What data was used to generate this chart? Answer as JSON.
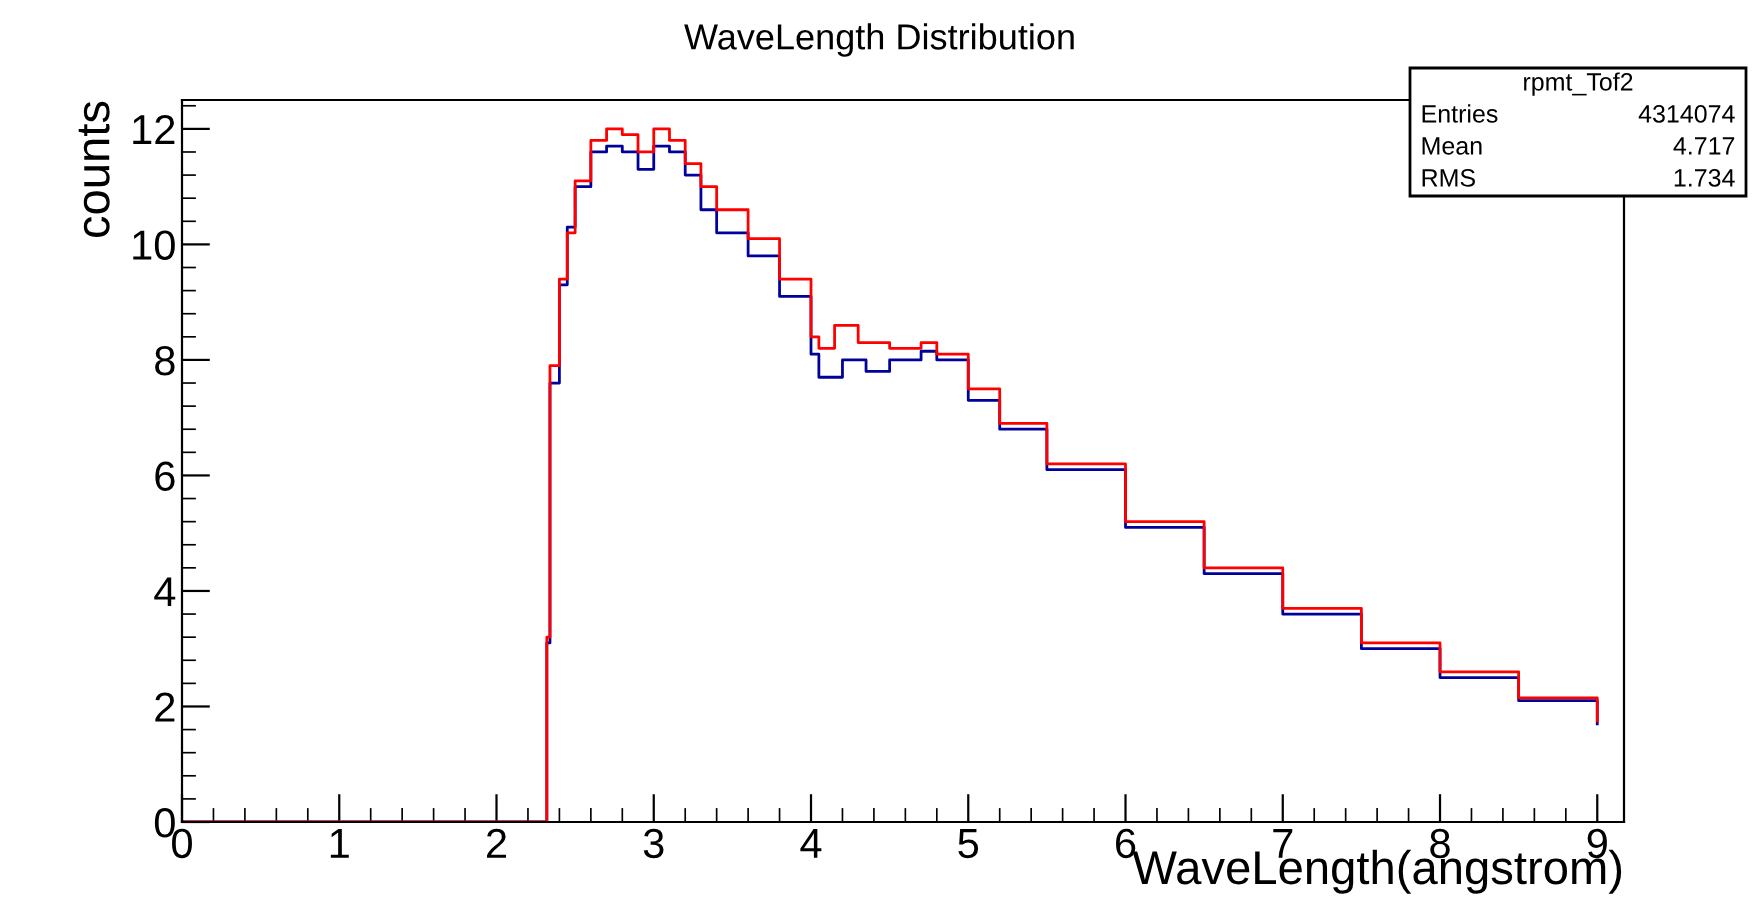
{
  "chart_data": {
    "type": "step",
    "title": "WaveLength Distribution",
    "xlabel": "WaveLength(angstrom)",
    "ylabel": "counts",
    "annotations": [
      "rpmt_Tof2",
      "Entries",
      "4314074",
      "Mean",
      "4.717",
      "RMS",
      "1.734"
    ],
    "xlim": [
      0,
      9.17
    ],
    "xticks": [
      0,
      1,
      2,
      3,
      4,
      5,
      6,
      7,
      8,
      9
    ],
    "ylim": [
      0,
      12.5
    ],
    "yticks": [
      0,
      2,
      4,
      6,
      8,
      10,
      12
    ],
    "grid": false,
    "legend": false,
    "series": [
      {
        "color": "#00009a",
        "x": [
          0,
          2.32,
          2.34,
          2.4,
          2.45,
          2.5,
          2.6,
          2.7,
          2.8,
          2.9,
          3.0,
          3.1,
          3.2,
          3.3,
          3.4,
          3.6,
          3.8,
          4.0,
          4.05,
          4.2,
          4.35,
          4.5,
          4.7,
          4.8,
          5.0,
          5.2,
          5.5,
          6.0,
          6.5,
          7.0,
          7.5,
          8.0,
          8.5,
          9.0
        ],
        "values": [
          0,
          3.1,
          7.6,
          9.3,
          10.3,
          11.0,
          11.6,
          11.7,
          11.6,
          11.3,
          11.7,
          11.6,
          11.2,
          10.6,
          10.2,
          9.8,
          9.1,
          8.1,
          7.7,
          8.0,
          7.8,
          8.0,
          8.15,
          8.0,
          7.3,
          6.8,
          6.1,
          5.1,
          4.3,
          3.6,
          3.0,
          2.5,
          2.1,
          1.7
        ]
      },
      {
        "color": "#ff0000",
        "x": [
          0,
          2.32,
          2.34,
          2.4,
          2.45,
          2.5,
          2.6,
          2.7,
          2.8,
          2.9,
          3.0,
          3.1,
          3.2,
          3.3,
          3.4,
          3.6,
          3.8,
          4.0,
          4.05,
          4.15,
          4.3,
          4.5,
          4.7,
          4.8,
          5.0,
          5.2,
          5.5,
          6.0,
          6.5,
          7.0,
          7.5,
          8.0,
          8.5,
          9.0
        ],
        "values": [
          0,
          3.2,
          7.9,
          9.4,
          10.2,
          11.1,
          11.8,
          12.0,
          11.9,
          11.6,
          12.0,
          11.8,
          11.4,
          11.0,
          10.6,
          10.1,
          9.4,
          8.4,
          8.2,
          8.6,
          8.3,
          8.2,
          8.3,
          8.1,
          7.5,
          6.9,
          6.2,
          5.2,
          4.4,
          3.7,
          3.1,
          2.6,
          2.15,
          1.75
        ]
      }
    ]
  }
}
